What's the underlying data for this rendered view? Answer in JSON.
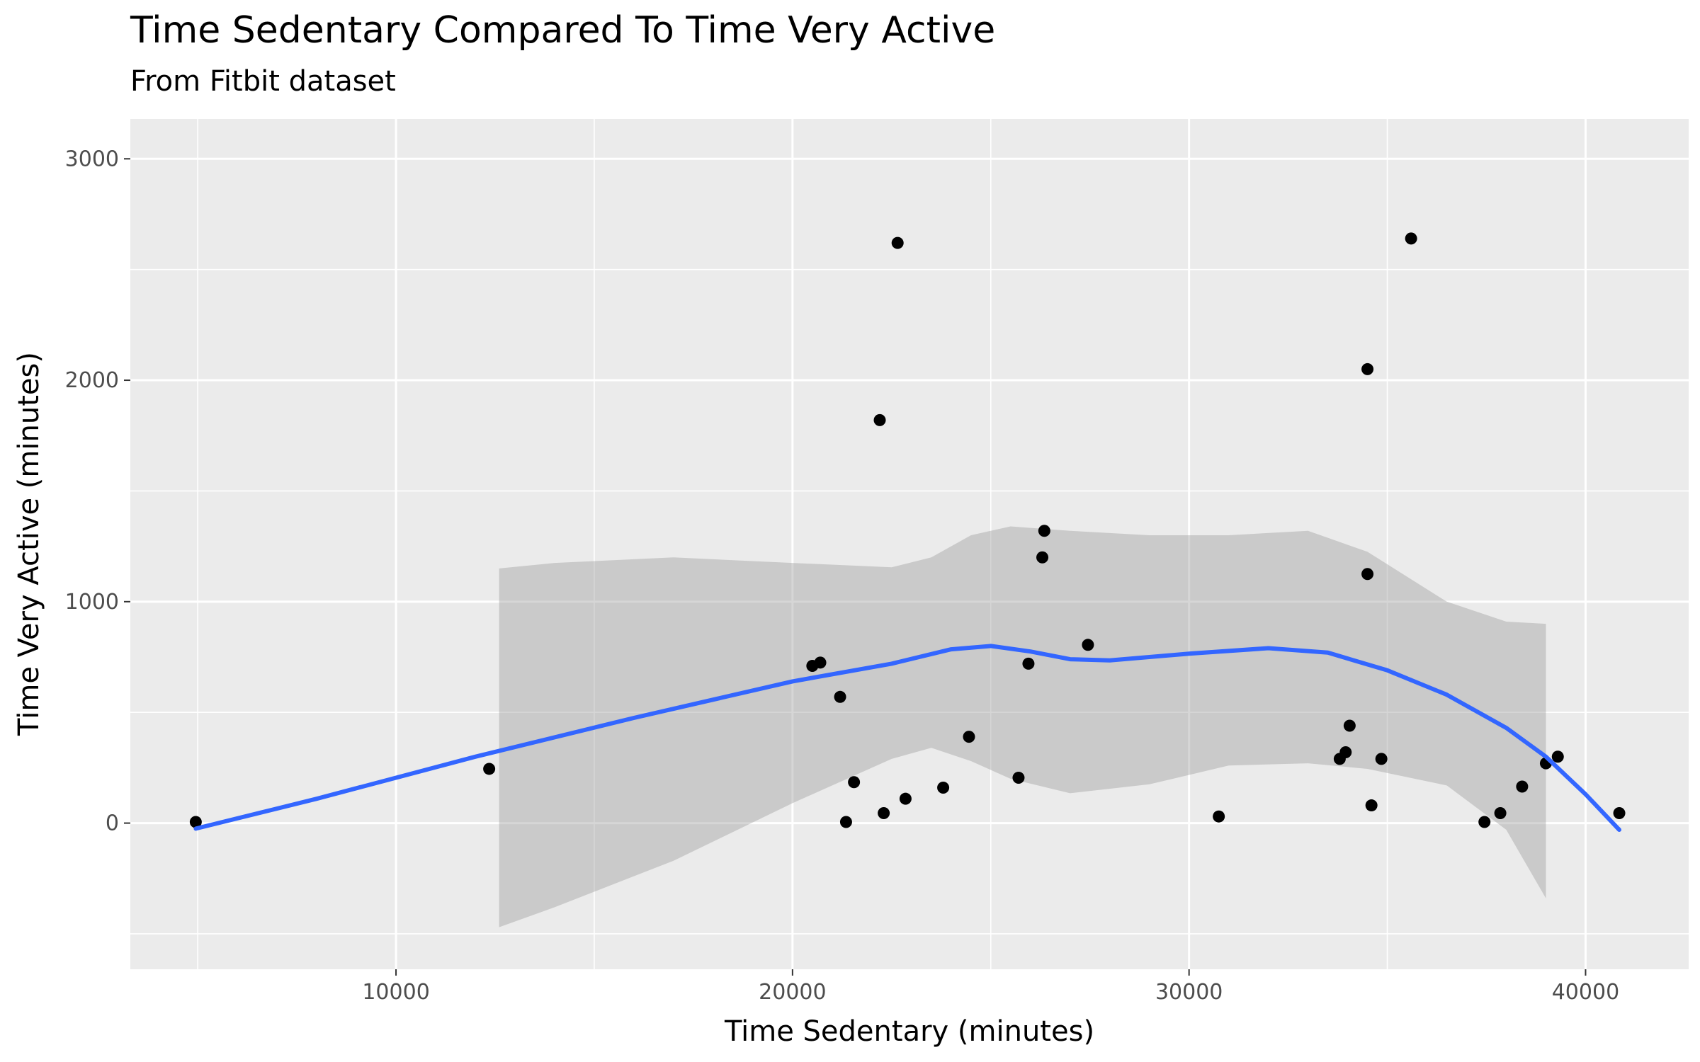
{
  "chart_data": {
    "type": "scatter",
    "title": "Time Sedentary Compared To Time Very Active",
    "subtitle": "From Fitbit dataset",
    "xlabel": "Time Sedentary (minutes)",
    "ylabel": "Time Very Active (minutes)",
    "xlim": [
      3300,
      42600
    ],
    "ylim": [
      -660,
      3180
    ],
    "x_ticks": [
      10000,
      20000,
      30000,
      40000
    ],
    "y_ticks": [
      0,
      1000,
      2000,
      3000
    ],
    "x_tick_labels": [
      "10000",
      "20000",
      "30000",
      "40000"
    ],
    "y_tick_labels": [
      "0",
      "1000",
      "2000",
      "3000"
    ],
    "grid": true,
    "legend": "none",
    "points": [
      {
        "x": 4950,
        "y": 5
      },
      {
        "x": 12350,
        "y": 245
      },
      {
        "x": 20500,
        "y": 710
      },
      {
        "x": 20700,
        "y": 725
      },
      {
        "x": 21200,
        "y": 570
      },
      {
        "x": 21350,
        "y": 5
      },
      {
        "x": 21550,
        "y": 185
      },
      {
        "x": 22200,
        "y": 1820
      },
      {
        "x": 22300,
        "y": 45
      },
      {
        "x": 22650,
        "y": 2620
      },
      {
        "x": 22850,
        "y": 110
      },
      {
        "x": 23800,
        "y": 160
      },
      {
        "x": 24450,
        "y": 390
      },
      {
        "x": 25700,
        "y": 205
      },
      {
        "x": 25950,
        "y": 720
      },
      {
        "x": 26300,
        "y": 1200
      },
      {
        "x": 26350,
        "y": 1320
      },
      {
        "x": 27450,
        "y": 805
      },
      {
        "x": 30750,
        "y": 30
      },
      {
        "x": 33800,
        "y": 290
      },
      {
        "x": 33950,
        "y": 320
      },
      {
        "x": 34050,
        "y": 440
      },
      {
        "x": 34500,
        "y": 2050
      },
      {
        "x": 34500,
        "y": 1125
      },
      {
        "x": 34600,
        "y": 80
      },
      {
        "x": 34850,
        "y": 290
      },
      {
        "x": 35600,
        "y": 2640
      },
      {
        "x": 37450,
        "y": 5
      },
      {
        "x": 37850,
        "y": 45
      },
      {
        "x": 38400,
        "y": 165
      },
      {
        "x": 39000,
        "y": 270
      },
      {
        "x": 39300,
        "y": 300
      },
      {
        "x": 40850,
        "y": 45
      }
    ],
    "smooth_line": {
      "x": [
        4950,
        8000,
        12000,
        16000,
        20000,
        22500,
        24000,
        25000,
        26000,
        27000,
        28000,
        30000,
        32000,
        33500,
        35000,
        36500,
        38000,
        39000,
        40000,
        40850
      ],
      "y": [
        -25,
        110,
        300,
        475,
        640,
        720,
        785,
        800,
        775,
        740,
        735,
        765,
        790,
        770,
        690,
        580,
        430,
        300,
        130,
        -30
      ]
    },
    "confidence_band": {
      "x": [
        12600,
        14000,
        17000,
        20000,
        22500,
        23500,
        24500,
        25500,
        27000,
        29000,
        31000,
        33000,
        34500,
        36500,
        38000,
        39000
      ],
      "upper": [
        1150,
        1175,
        1200,
        1175,
        1155,
        1200,
        1300,
        1340,
        1320,
        1300,
        1300,
        1320,
        1225,
        1000,
        910,
        900
      ],
      "lower": [
        -470,
        -380,
        -170,
        90,
        290,
        340,
        280,
        200,
        135,
        175,
        260,
        270,
        245,
        170,
        -30,
        -340
      ]
    },
    "colors": {
      "panel": "#ebebeb",
      "grid": "#ffffff",
      "points": "#000000",
      "smooth": "#3366ff",
      "band": "#999999"
    }
  }
}
